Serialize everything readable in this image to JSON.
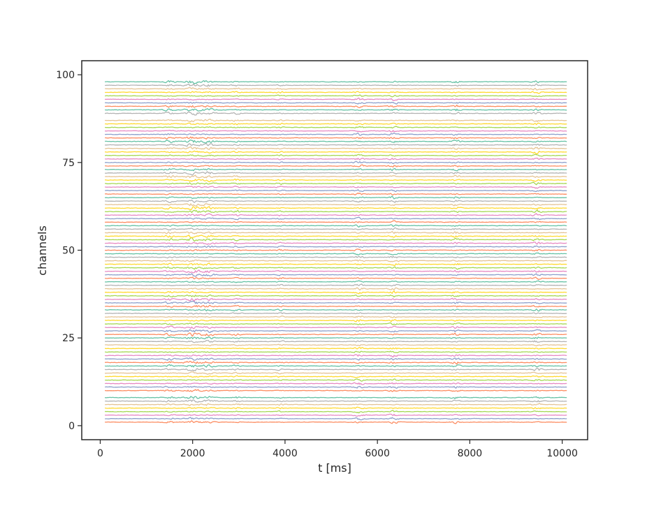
{
  "chart_data": {
    "type": "line",
    "title": "",
    "xlabel": "t [ms]",
    "ylabel": "channels",
    "xlim": [
      -400,
      10550
    ],
    "ylim": [
      -4,
      104
    ],
    "x_ticks": [
      0,
      2000,
      4000,
      6000,
      8000,
      10000
    ],
    "x_tick_labels": [
      "0",
      "2000",
      "4000",
      "6000",
      "8000",
      "10000"
    ],
    "y_ticks": [
      0,
      25,
      50,
      75,
      100
    ],
    "y_tick_labels": [
      "0",
      "25",
      "50",
      "75",
      "100"
    ],
    "grid": false,
    "legend": "none",
    "x_range": [
      100,
      10100
    ],
    "channel_offsets": [
      1,
      2,
      3,
      4,
      5,
      6,
      7,
      8,
      10,
      11,
      12,
      13,
      14,
      15,
      16,
      17,
      18,
      19,
      20,
      21,
      22,
      23,
      24,
      25,
      26,
      27,
      28,
      29,
      30,
      31,
      32,
      33,
      34,
      35,
      36,
      37,
      38,
      39,
      40,
      41,
      42,
      43,
      44,
      45,
      46,
      47,
      48,
      49,
      50,
      51,
      52,
      53,
      54,
      55,
      56,
      57,
      58,
      59,
      60,
      61,
      62,
      63,
      64,
      65,
      66,
      67,
      68,
      69,
      70,
      71,
      72,
      73,
      74,
      75,
      76,
      77,
      78,
      79,
      80,
      81,
      82,
      83,
      84,
      85,
      86,
      87,
      89,
      90,
      91,
      92,
      93,
      94,
      95,
      96,
      97,
      98
    ],
    "palette": [
      "#fc8d62",
      "#8da0cb",
      "#e78ac3",
      "#a6d854",
      "#ffd92f",
      "#e5c494",
      "#b3b3b3",
      "#66c2a5"
    ],
    "bursts": [
      {
        "t": 1500,
        "w": 120,
        "amp": 0.9
      },
      {
        "t": 2000,
        "w": 160,
        "amp": 1.2
      },
      {
        "t": 2350,
        "w": 140,
        "amp": 1.0
      },
      {
        "t": 2950,
        "w": 100,
        "amp": 0.7
      },
      {
        "t": 3900,
        "w": 90,
        "amp": 0.6
      },
      {
        "t": 5600,
        "w": 120,
        "amp": 0.9
      },
      {
        "t": 6350,
        "w": 110,
        "amp": 1.0
      },
      {
        "t": 7700,
        "w": 100,
        "amp": 1.0
      },
      {
        "t": 9450,
        "w": 110,
        "amp": 1.0
      }
    ],
    "noise_amplitude": 0.25
  }
}
